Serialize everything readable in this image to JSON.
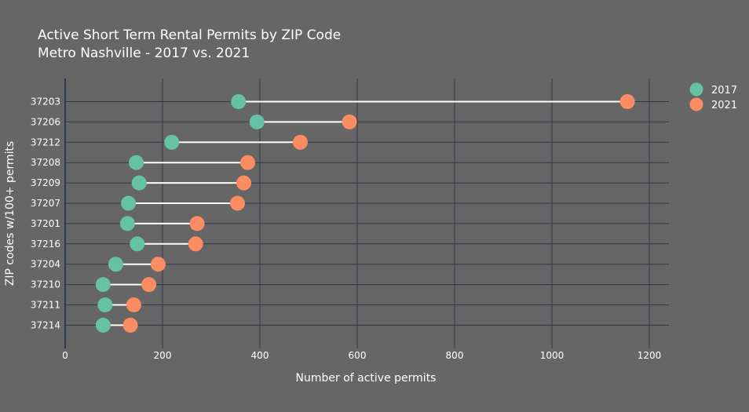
{
  "chart_data": {
    "type": "scatter",
    "title": "Active Short Term Rental Permits by ZIP Code",
    "subtitle": "Metro Nashville - 2017 vs. 2021",
    "xlabel": "Number of active permits",
    "ylabel": "ZIP codes w/100+ permits",
    "xlim": [
      0,
      1240
    ],
    "x_ticks": [
      0,
      200,
      400,
      600,
      800,
      1000,
      1200
    ],
    "grid": true,
    "legend_position": "top-right",
    "categories": [
      "37203",
      "37206",
      "37212",
      "37208",
      "37209",
      "37207",
      "37201",
      "37216",
      "37204",
      "37210",
      "37211",
      "37214"
    ],
    "series": [
      {
        "name": "2017",
        "color": "#66c2a5",
        "values": [
          356,
          394,
          219,
          146,
          152,
          130,
          128,
          148,
          104,
          78,
          82,
          78
        ]
      },
      {
        "name": "2021",
        "color": "#fc8d62",
        "values": [
          1155,
          584,
          483,
          375,
          367,
          354,
          271,
          268,
          191,
          172,
          141,
          134
        ]
      }
    ],
    "connector_color": "#ffffff"
  }
}
